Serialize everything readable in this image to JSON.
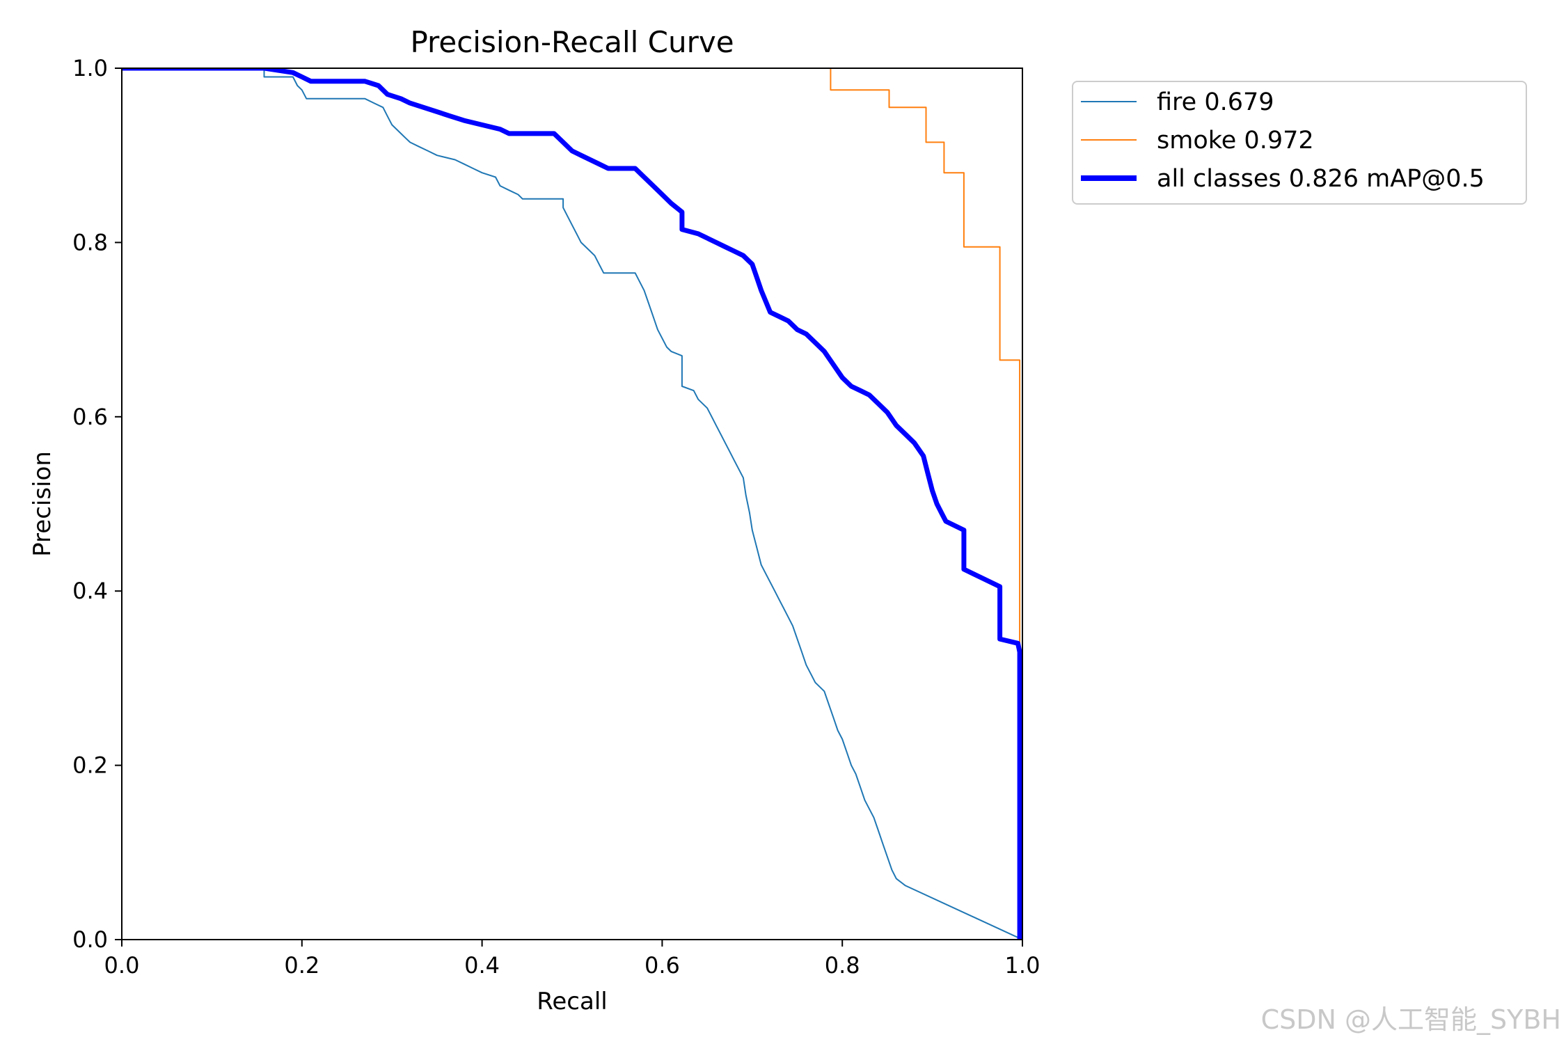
{
  "chart_data": {
    "type": "line",
    "title": "Precision-Recall Curve",
    "xlabel": "Recall",
    "ylabel": "Precision",
    "xlim": [
      0,
      1
    ],
    "ylim": [
      0,
      1
    ],
    "xticks": [
      "0.0",
      "0.2",
      "0.4",
      "0.6",
      "0.8",
      "1.0"
    ],
    "yticks": [
      "0.0",
      "0.2",
      "0.4",
      "0.6",
      "0.8",
      "1.0"
    ],
    "xtick_values": [
      0,
      0.2,
      0.4,
      0.6,
      0.8,
      1.0
    ],
    "ytick_values": [
      0,
      0.2,
      0.4,
      0.6,
      0.8,
      1.0
    ],
    "grid": false,
    "legend_position": "outside-top-right",
    "series": [
      {
        "name": "fire 0.679",
        "color": "#1f77b4",
        "style": "thin",
        "points": [
          [
            0,
            1.0
          ],
          [
            0.158,
            1.0
          ],
          [
            0.158,
            0.99
          ],
          [
            0.19,
            0.99
          ],
          [
            0.195,
            0.98
          ],
          [
            0.2,
            0.975
          ],
          [
            0.205,
            0.965
          ],
          [
            0.25,
            0.965
          ],
          [
            0.27,
            0.965
          ],
          [
            0.28,
            0.96
          ],
          [
            0.29,
            0.955
          ],
          [
            0.295,
            0.945
          ],
          [
            0.3,
            0.935
          ],
          [
            0.31,
            0.925
          ],
          [
            0.315,
            0.92
          ],
          [
            0.32,
            0.915
          ],
          [
            0.33,
            0.91
          ],
          [
            0.34,
            0.905
          ],
          [
            0.35,
            0.9
          ],
          [
            0.37,
            0.895
          ],
          [
            0.38,
            0.89
          ],
          [
            0.39,
            0.885
          ],
          [
            0.4,
            0.88
          ],
          [
            0.415,
            0.875
          ],
          [
            0.42,
            0.865
          ],
          [
            0.43,
            0.86
          ],
          [
            0.44,
            0.855
          ],
          [
            0.445,
            0.85
          ],
          [
            0.49,
            0.85
          ],
          [
            0.49,
            0.84
          ],
          [
            0.495,
            0.83
          ],
          [
            0.5,
            0.82
          ],
          [
            0.505,
            0.81
          ],
          [
            0.51,
            0.8
          ],
          [
            0.52,
            0.79
          ],
          [
            0.525,
            0.785
          ],
          [
            0.53,
            0.775
          ],
          [
            0.535,
            0.765
          ],
          [
            0.57,
            0.765
          ],
          [
            0.575,
            0.755
          ],
          [
            0.58,
            0.745
          ],
          [
            0.585,
            0.73
          ],
          [
            0.59,
            0.715
          ],
          [
            0.595,
            0.7
          ],
          [
            0.6,
            0.69
          ],
          [
            0.605,
            0.68
          ],
          [
            0.61,
            0.675
          ],
          [
            0.622,
            0.67
          ],
          [
            0.622,
            0.635
          ],
          [
            0.635,
            0.63
          ],
          [
            0.64,
            0.62
          ],
          [
            0.65,
            0.61
          ],
          [
            0.655,
            0.6
          ],
          [
            0.66,
            0.59
          ],
          [
            0.665,
            0.58
          ],
          [
            0.67,
            0.57
          ],
          [
            0.675,
            0.56
          ],
          [
            0.68,
            0.55
          ],
          [
            0.69,
            0.53
          ],
          [
            0.693,
            0.51
          ],
          [
            0.697,
            0.49
          ],
          [
            0.7,
            0.47
          ],
          [
            0.705,
            0.45
          ],
          [
            0.71,
            0.43
          ],
          [
            0.715,
            0.42
          ],
          [
            0.72,
            0.41
          ],
          [
            0.725,
            0.4
          ],
          [
            0.73,
            0.39
          ],
          [
            0.735,
            0.38
          ],
          [
            0.74,
            0.37
          ],
          [
            0.745,
            0.36
          ],
          [
            0.75,
            0.345
          ],
          [
            0.755,
            0.33
          ],
          [
            0.76,
            0.315
          ],
          [
            0.765,
            0.305
          ],
          [
            0.77,
            0.295
          ],
          [
            0.78,
            0.285
          ],
          [
            0.785,
            0.27
          ],
          [
            0.79,
            0.255
          ],
          [
            0.795,
            0.24
          ],
          [
            0.8,
            0.23
          ],
          [
            0.805,
            0.215
          ],
          [
            0.81,
            0.2
          ],
          [
            0.815,
            0.19
          ],
          [
            0.82,
            0.175
          ],
          [
            0.825,
            0.16
          ],
          [
            0.83,
            0.15
          ],
          [
            0.835,
            0.14
          ],
          [
            0.84,
            0.125
          ],
          [
            0.845,
            0.11
          ],
          [
            0.85,
            0.095
          ],
          [
            0.855,
            0.08
          ],
          [
            0.86,
            0.07
          ],
          [
            0.87,
            0.062
          ],
          [
            1.0,
            0.0
          ]
        ]
      },
      {
        "name": "smoke 0.972",
        "color": "#ff7f0e",
        "style": "thin",
        "points": [
          [
            0.787,
            1.0
          ],
          [
            0.787,
            0.975
          ],
          [
            0.852,
            0.975
          ],
          [
            0.852,
            0.955
          ],
          [
            0.893,
            0.955
          ],
          [
            0.893,
            0.915
          ],
          [
            0.913,
            0.915
          ],
          [
            0.913,
            0.88
          ],
          [
            0.935,
            0.88
          ],
          [
            0.935,
            0.795
          ],
          [
            0.975,
            0.795
          ],
          [
            0.975,
            0.665
          ],
          [
            0.997,
            0.665
          ],
          [
            0.997,
            0.0
          ]
        ]
      },
      {
        "name": "all classes 0.826 mAP@0.5",
        "color": "#0000ff",
        "style": "thick",
        "points": [
          [
            0,
            1.0
          ],
          [
            0.158,
            1.0
          ],
          [
            0.19,
            0.995
          ],
          [
            0.2,
            0.99
          ],
          [
            0.21,
            0.985
          ],
          [
            0.27,
            0.985
          ],
          [
            0.285,
            0.98
          ],
          [
            0.295,
            0.97
          ],
          [
            0.31,
            0.965
          ],
          [
            0.32,
            0.96
          ],
          [
            0.335,
            0.955
          ],
          [
            0.35,
            0.95
          ],
          [
            0.365,
            0.945
          ],
          [
            0.38,
            0.94
          ],
          [
            0.4,
            0.935
          ],
          [
            0.42,
            0.93
          ],
          [
            0.43,
            0.925
          ],
          [
            0.48,
            0.925
          ],
          [
            0.49,
            0.915
          ],
          [
            0.5,
            0.905
          ],
          [
            0.51,
            0.9
          ],
          [
            0.53,
            0.89
          ],
          [
            0.54,
            0.885
          ],
          [
            0.57,
            0.885
          ],
          [
            0.58,
            0.875
          ],
          [
            0.59,
            0.865
          ],
          [
            0.6,
            0.855
          ],
          [
            0.61,
            0.845
          ],
          [
            0.622,
            0.835
          ],
          [
            0.622,
            0.815
          ],
          [
            0.64,
            0.81
          ],
          [
            0.65,
            0.805
          ],
          [
            0.66,
            0.8
          ],
          [
            0.67,
            0.795
          ],
          [
            0.68,
            0.79
          ],
          [
            0.69,
            0.785
          ],
          [
            0.7,
            0.775
          ],
          [
            0.705,
            0.76
          ],
          [
            0.71,
            0.745
          ],
          [
            0.72,
            0.72
          ],
          [
            0.73,
            0.715
          ],
          [
            0.74,
            0.71
          ],
          [
            0.75,
            0.7
          ],
          [
            0.76,
            0.695
          ],
          [
            0.77,
            0.685
          ],
          [
            0.78,
            0.675
          ],
          [
            0.79,
            0.66
          ],
          [
            0.8,
            0.645
          ],
          [
            0.81,
            0.635
          ],
          [
            0.82,
            0.63
          ],
          [
            0.83,
            0.625
          ],
          [
            0.84,
            0.615
          ],
          [
            0.85,
            0.605
          ],
          [
            0.86,
            0.59
          ],
          [
            0.87,
            0.58
          ],
          [
            0.88,
            0.57
          ],
          [
            0.89,
            0.555
          ],
          [
            0.895,
            0.535
          ],
          [
            0.9,
            0.515
          ],
          [
            0.905,
            0.5
          ],
          [
            0.91,
            0.49
          ],
          [
            0.915,
            0.48
          ],
          [
            0.935,
            0.47
          ],
          [
            0.935,
            0.425
          ],
          [
            0.975,
            0.405
          ],
          [
            0.975,
            0.345
          ],
          [
            0.995,
            0.34
          ],
          [
            0.997,
            0.33
          ],
          [
            0.997,
            0.0
          ]
        ]
      }
    ]
  },
  "watermark": "CSDN @人工智能_SYBH"
}
